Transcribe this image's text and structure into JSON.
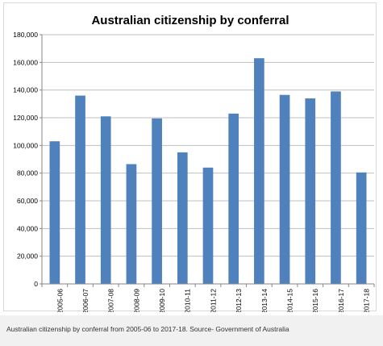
{
  "chart_data": {
    "type": "bar",
    "title": "Australian citizenship by conferral",
    "categories": [
      "2005-06",
      "2006-07",
      "2007-08",
      "2008-09",
      "2009-10",
      "2010-11",
      "2011-12",
      "2012-13",
      "2013-14",
      "2014-15",
      "2015-16",
      "2016-17",
      "2017-18"
    ],
    "values": [
      103000,
      136000,
      121000,
      86500,
      119500,
      95000,
      84000,
      123000,
      163000,
      136500,
      134000,
      139000,
      80500
    ],
    "yticks": [
      "0",
      "20,000",
      "40,000",
      "60,000",
      "80,000",
      "100,000",
      "120,000",
      "140,000",
      "160,000",
      "180,000"
    ],
    "ylim": [
      0,
      180000
    ],
    "grid": true,
    "legend": "none",
    "bar_color": "#4f81bd",
    "grid_color": "#bfbfbf"
  },
  "caption": "Australian citizenship by conferral from 2005-06 to 2017-18. Source- Government of Australia"
}
